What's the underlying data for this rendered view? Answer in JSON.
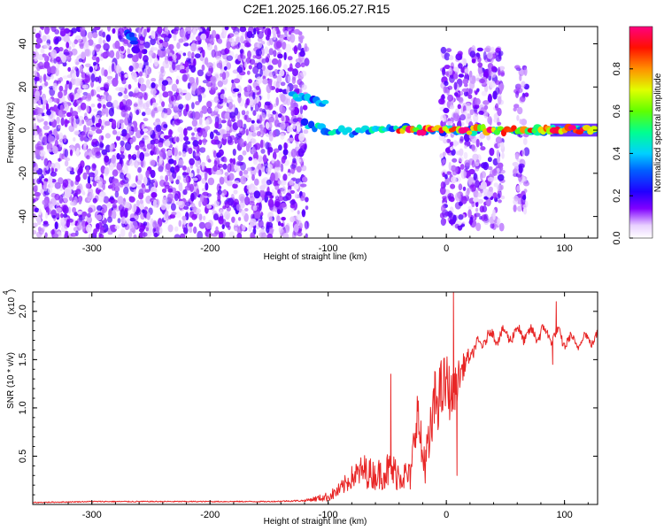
{
  "title": "C2E1.2025.166.05.27.R15",
  "colors": {
    "trace": "#e82626",
    "frame": "#000000"
  },
  "chart_data": [
    {
      "type": "heatmap",
      "name": "spectrogram",
      "xlabel": "Height of straight line (km)",
      "ylabel": "Frequency (Hz)",
      "xlim": [
        -350,
        128
      ],
      "ylim": [
        -50,
        48
      ],
      "xticks": [
        -300,
        -200,
        -100,
        0,
        100
      ],
      "yticks": [
        -40,
        -20,
        0,
        20,
        40
      ],
      "colorbar": {
        "label": "Normalized spectral amplitude",
        "range": [
          0.0,
          1.0
        ],
        "ticks": [
          "0.0",
          "0.2",
          "0.4",
          "0.6",
          "0.8"
        ],
        "colormap": [
          "#ffffff",
          "#8000ff",
          "#0000ff",
          "#00c0ff",
          "#00ff80",
          "#80ff00",
          "#ffff00",
          "#ff8000",
          "#ff0000",
          "#ff0080"
        ]
      },
      "regions": [
        {
          "description": "broadband noise",
          "x": [
            -350,
            -118
          ],
          "f": [
            -50,
            48
          ],
          "amplitude": 0.1
        },
        {
          "description": "noise band",
          "x": [
            -4,
            48
          ],
          "f": [
            -45,
            38
          ],
          "amplitude": 0.1
        },
        {
          "description": "noise band",
          "x": [
            58,
            68
          ],
          "f": [
            -38,
            30
          ],
          "amplitude": 0.1
        }
      ],
      "ridges": [
        {
          "x": [
            -270,
            -265,
            -262
          ],
          "f": [
            46,
            42,
            34
          ],
          "amplitude": 0.3
        },
        {
          "x": [
            -130,
            -120,
            -110,
            -100
          ],
          "f": [
            16,
            15,
            14,
            12
          ],
          "amplitude": 0.4
        },
        {
          "x": [
            -120,
            -100,
            -80,
            -60,
            -40,
            -20,
            0,
            20,
            40,
            60,
            80,
            90,
            128
          ],
          "f": [
            3,
            0,
            -1,
            0,
            1,
            0,
            0,
            0,
            0,
            0,
            0,
            0,
            0
          ],
          "amplitude": 0.45
        },
        {
          "x": [
            -40,
            -20,
            -10,
            40,
            60,
            80,
            88,
            128
          ],
          "f": [
            0,
            0,
            0,
            0,
            0,
            0,
            0,
            0
          ],
          "amplitude": 0.95
        }
      ]
    },
    {
      "type": "line",
      "name": "snr",
      "xlabel": "Height of straight line (km)",
      "ylabel": "SNR (10 * v/v)",
      "scale_label": "(x10",
      "scale_exponent": "4",
      "xlim": [
        -350,
        128
      ],
      "ylim": [
        0,
        2.2
      ],
      "xticks": [
        -300,
        -200,
        -100,
        0,
        100
      ],
      "yticks": [
        "0.5",
        "1.0",
        "1.5",
        "2.0"
      ],
      "series": [
        {
          "x": [
            -350,
            -300,
            -250,
            -200,
            -150,
            -120,
            -100,
            -90,
            -80,
            -70,
            -60,
            -50,
            -40,
            -30,
            -25,
            -20,
            -15,
            -10,
            -5,
            0,
            5,
            10,
            15,
            20,
            25,
            30,
            40,
            50,
            60,
            70,
            80,
            90,
            95,
            100,
            110,
            120,
            128
          ],
          "y": [
            0.02,
            0.03,
            0.03,
            0.03,
            0.03,
            0.04,
            0.08,
            0.15,
            0.28,
            0.35,
            0.3,
            0.35,
            0.32,
            0.28,
            1.0,
            0.45,
            0.55,
            1.05,
            1.15,
            1.25,
            1.1,
            1.3,
            1.45,
            1.55,
            1.6,
            1.7,
            1.75,
            1.75,
            1.78,
            1.75,
            1.78,
            1.75,
            1.75,
            1.7,
            1.68,
            1.72,
            1.72
          ],
          "noise": [
            0.005,
            0.006,
            0.006,
            0.006,
            0.006,
            0.01,
            0.05,
            0.08,
            0.12,
            0.18,
            0.15,
            0.2,
            0.18,
            0.15,
            0.3,
            0.25,
            0.3,
            0.35,
            0.35,
            0.35,
            0.25,
            0.2,
            0.12,
            0.08,
            0.06,
            0.05,
            0.05,
            0.05,
            0.06,
            0.05,
            0.06,
            0.05,
            0.05,
            0.05,
            0.04,
            0.04,
            0.04
          ],
          "peaks": [
            {
              "x": -47,
              "y": 1.35
            },
            {
              "x": 6,
              "y": 2.2
            },
            {
              "x": 9,
              "y": 0.3
            },
            {
              "x": 93,
              "y": 2.1
            },
            {
              "x": 90,
              "y": 1.45
            }
          ]
        }
      ]
    }
  ]
}
